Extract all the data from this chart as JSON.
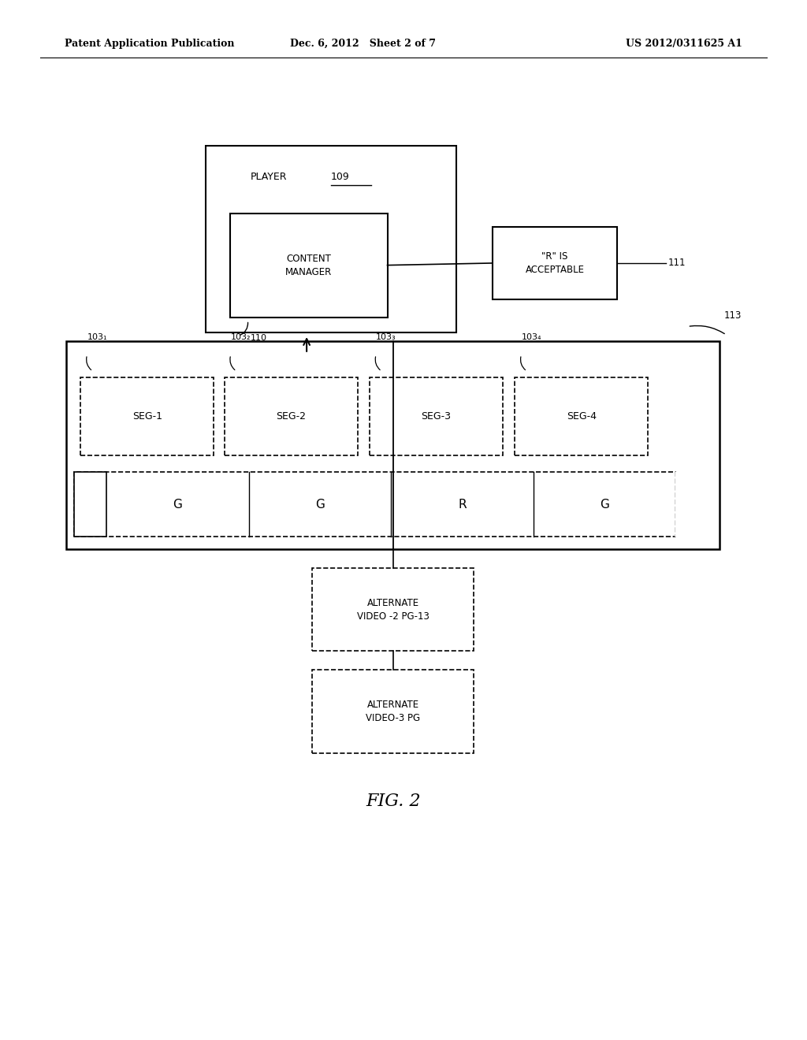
{
  "header_left": "Patent Application Publication",
  "header_mid": "Dec. 6, 2012   Sheet 2 of 7",
  "header_right": "US 2012/0311625 A1",
  "figure_label": "FIG. 2",
  "bg_color": "#ffffff",
  "text_color": "#000000",
  "seg_labels": [
    "SEG-1",
    "SEG-2",
    "SEG-3",
    "SEG-4"
  ],
  "seg_nums": [
    "103₁",
    "103₂",
    "103₃",
    "103₄"
  ],
  "rating_labels": [
    "G",
    "G",
    "R",
    "G"
  ],
  "label_110": "110",
  "label_111": "111",
  "label_113": "113",
  "player_label": "PLAYER",
  "player_num": "109",
  "cm_label": "CONTENT\nMANAGER",
  "r_label": "\"R\" IS\nACCEPTABLE",
  "av2_label": "ALTERNATE\nVIDEO -2 PG-13",
  "av3_label": "ALTERNATE\nVIDEO-3 PG"
}
